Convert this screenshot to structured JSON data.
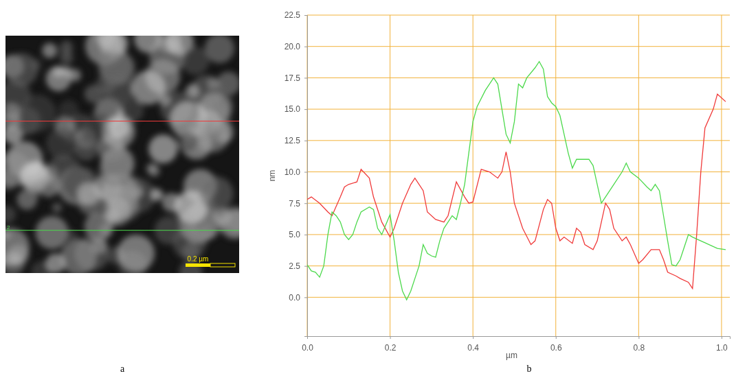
{
  "chart_data": [
    {
      "type": "image",
      "label": "a",
      "scale_bar": "0.2 µm",
      "annotations": [
        "2"
      ]
    },
    {
      "type": "line",
      "label": "b",
      "x_label": "µm",
      "y_label": "nm",
      "xlim": [
        0,
        1.02
      ],
      "xticks": [
        {
          "value": 0,
          "label": "0.0"
        },
        0.2,
        0.4,
        0.6,
        0.8,
        {
          "value": 1,
          "label": "1.0"
        }
      ],
      "ylim": [
        -3.1,
        22.5
      ],
      "yticks": [
        {
          "value": 0,
          "label": "0.0"
        },
        2.5,
        {
          "value": 5,
          "label": "5.0"
        },
        7.5,
        {
          "value": 10,
          "label": "10.0"
        },
        12.5,
        {
          "value": 15,
          "label": "15.0"
        },
        17.5,
        {
          "value": 20,
          "label": "20.0"
        },
        22.5
      ],
      "grid": true,
      "series": [
        {
          "color": "#f03a3a",
          "x": [
            0.0,
            0.01,
            0.03,
            0.05,
            0.06,
            0.08,
            0.09,
            0.1,
            0.12,
            0.13,
            0.15,
            0.16,
            0.18,
            0.2,
            0.21,
            0.23,
            0.25,
            0.26,
            0.28,
            0.29,
            0.31,
            0.33,
            0.34,
            0.36,
            0.38,
            0.39,
            0.4,
            0.42,
            0.44,
            0.46,
            0.47,
            0.48,
            0.49,
            0.5,
            0.52,
            0.54,
            0.55,
            0.57,
            0.58,
            0.59,
            0.6,
            0.61,
            0.62,
            0.64,
            0.65,
            0.66,
            0.67,
            0.69,
            0.7,
            0.72,
            0.73,
            0.74,
            0.76,
            0.77,
            0.78,
            0.8,
            0.81,
            0.83,
            0.85,
            0.86,
            0.87,
            0.89,
            0.9,
            0.92,
            0.93,
            0.94,
            0.95,
            0.96,
            0.98,
            0.99,
            1.01
          ],
          "values": [
            7.8,
            8.0,
            7.5,
            6.8,
            6.5,
            8.0,
            8.8,
            9.0,
            9.2,
            10.2,
            9.5,
            8.0,
            6.0,
            4.8,
            5.5,
            7.5,
            9.0,
            9.5,
            8.5,
            6.8,
            6.2,
            6.0,
            6.5,
            9.2,
            8.0,
            7.5,
            7.6,
            10.2,
            10.0,
            9.5,
            10.0,
            11.6,
            10.0,
            7.5,
            5.5,
            4.2,
            4.5,
            7.0,
            7.8,
            7.5,
            5.5,
            4.5,
            4.8,
            4.3,
            5.5,
            5.2,
            4.2,
            3.8,
            4.5,
            7.5,
            7.0,
            5.5,
            4.5,
            4.8,
            4.2,
            2.7,
            3.0,
            3.8,
            3.8,
            3.0,
            2.0,
            1.7,
            1.5,
            1.2,
            0.7,
            5.0,
            10.0,
            13.5,
            15.0,
            16.2,
            15.6
          ]
        },
        {
          "color": "#4cd94c",
          "x": [
            0.0,
            0.01,
            0.02,
            0.03,
            0.04,
            0.05,
            0.06,
            0.07,
            0.08,
            0.09,
            0.1,
            0.11,
            0.12,
            0.13,
            0.15,
            0.16,
            0.17,
            0.18,
            0.19,
            0.2,
            0.21,
            0.22,
            0.23,
            0.24,
            0.25,
            0.26,
            0.27,
            0.28,
            0.29,
            0.3,
            0.31,
            0.32,
            0.33,
            0.35,
            0.36,
            0.37,
            0.38,
            0.39,
            0.4,
            0.41,
            0.43,
            0.45,
            0.46,
            0.47,
            0.48,
            0.49,
            0.5,
            0.51,
            0.52,
            0.53,
            0.55,
            0.56,
            0.57,
            0.58,
            0.59,
            0.6,
            0.61,
            0.62,
            0.63,
            0.64,
            0.65,
            0.68,
            0.69,
            0.7,
            0.71,
            0.72,
            0.74,
            0.76,
            0.77,
            0.78,
            0.8,
            0.82,
            0.83,
            0.84,
            0.85,
            0.86,
            0.87,
            0.88,
            0.89,
            0.9,
            0.91,
            0.92,
            0.93,
            0.95,
            0.97,
            0.99,
            1.01
          ],
          "values": [
            2.6,
            2.1,
            2.0,
            1.6,
            2.5,
            5.0,
            6.8,
            6.5,
            6.0,
            5.0,
            4.6,
            5.0,
            6.0,
            6.8,
            7.2,
            7.0,
            5.5,
            5.0,
            5.8,
            6.6,
            4.5,
            2.0,
            0.5,
            -0.2,
            0.5,
            1.5,
            2.5,
            4.2,
            3.5,
            3.3,
            3.2,
            4.5,
            5.5,
            6.5,
            6.2,
            7.5,
            9.0,
            11.5,
            14.0,
            15.2,
            16.5,
            17.5,
            17.0,
            15.0,
            13.0,
            12.3,
            14.0,
            17.0,
            16.7,
            17.5,
            18.3,
            18.8,
            18.2,
            16.0,
            15.5,
            15.2,
            14.5,
            13.0,
            11.5,
            10.3,
            11.0,
            11.0,
            10.5,
            9.0,
            7.5,
            8.0,
            9.0,
            10.0,
            10.7,
            10.0,
            9.5,
            8.8,
            8.5,
            9.0,
            8.5,
            6.5,
            4.5,
            2.6,
            2.5,
            3.0,
            4.0,
            5.0,
            4.8,
            4.5,
            4.2,
            3.9,
            3.8
          ]
        }
      ]
    }
  ]
}
